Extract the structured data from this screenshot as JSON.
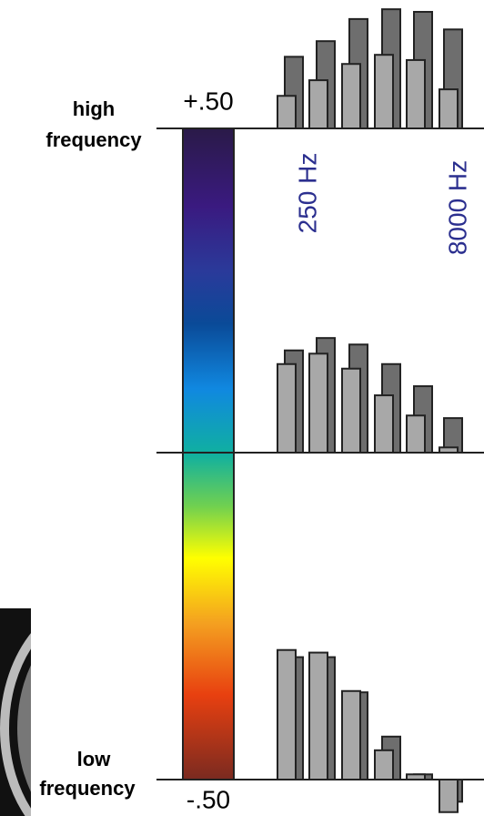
{
  "chart_data": {
    "type": "bar",
    "top_label": [
      "high",
      "frequency"
    ],
    "bottom_label": [
      "low",
      "frequency"
    ],
    "ylim": [
      -0.5,
      0.5
    ],
    "yticks": [
      {
        "value": 0.5,
        "label": "+.50"
      },
      {
        "value": -0.5,
        "label": "-.50"
      }
    ],
    "x_labels": [
      "250 Hz",
      "8000 Hz"
    ],
    "panels": [
      {
        "series": [
          {
            "color": "#6e6e6e",
            "values": [
              0.11,
              0.134,
              0.168,
              0.183,
              0.179,
              0.152
            ]
          },
          {
            "color": "#a8a8a8",
            "values": [
              0.05,
              0.074,
              0.099,
              0.113,
              0.105,
              0.06
            ]
          }
        ]
      },
      {
        "series": [
          {
            "color": "#6e6e6e",
            "values": [
              0.157,
              0.176,
              0.166,
              0.136,
              0.102,
              0.053
            ]
          },
          {
            "color": "#a8a8a8",
            "values": [
              0.136,
              0.152,
              0.129,
              0.088,
              0.057,
              0.008
            ]
          }
        ]
      },
      {
        "series": [
          {
            "color": "#6e6e6e",
            "values": [
              0.188,
              0.188,
              0.134,
              0.066,
              0.008,
              -0.034
            ]
          },
          {
            "color": "#a8a8a8",
            "values": [
              0.199,
              0.195,
              0.136,
              0.045,
              0.008,
              -0.05
            ]
          }
        ]
      }
    ]
  }
}
